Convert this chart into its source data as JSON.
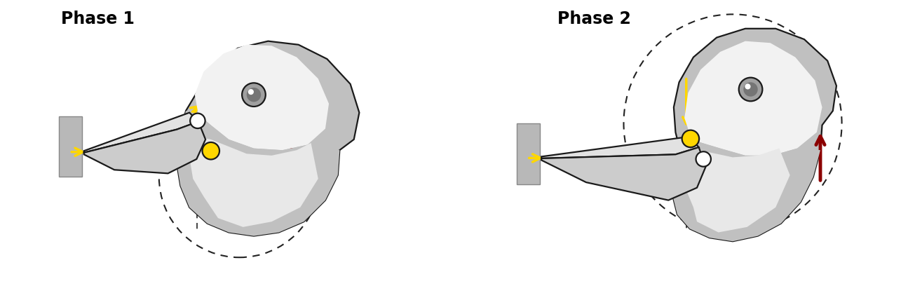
{
  "title1": "Phase 1",
  "title2": "Phase 2",
  "bg_color": "#ffffff",
  "body_gray": "#c0c0c0",
  "body_light": "#e8e8e8",
  "body_lighter": "#f2f2f2",
  "outline_color": "#1a1a1a",
  "yellow": "#FFD700",
  "dark_red": "#8B0000",
  "white": "#ffffff",
  "dashed_color": "#222222",
  "wall_color": "#b8b8b8",
  "wall_edge": "#888888"
}
